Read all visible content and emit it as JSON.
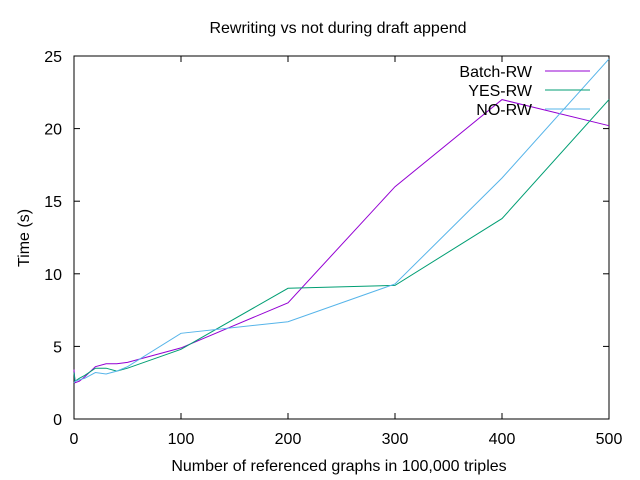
{
  "chart_data": {
    "type": "line",
    "title": "Rewriting vs not during draft append",
    "xlabel": "Number of referenced graphs in 100,000 triples",
    "ylabel": "Time (s)",
    "xlim": [
      0,
      500
    ],
    "ylim": [
      0,
      25
    ],
    "xticks": [
      "0",
      "100",
      "200",
      "300",
      "400",
      "500"
    ],
    "yticks": [
      "0",
      "5",
      "10",
      "15",
      "20",
      "25"
    ],
    "grid": false,
    "legend_position": "top-right",
    "series": [
      {
        "name": "Batch-RW",
        "color": "#9400d3",
        "x": [
          0,
          1,
          5,
          10,
          20,
          30,
          40,
          50,
          100,
          200,
          300,
          400,
          500
        ],
        "y": [
          3.4,
          2.5,
          2.6,
          2.9,
          3.6,
          3.8,
          3.8,
          3.9,
          4.9,
          8.0,
          16.0,
          22.0,
          20.2
        ]
      },
      {
        "name": "YES-RW",
        "color": "#009e73",
        "x": [
          0,
          1,
          5,
          10,
          20,
          30,
          40,
          50,
          100,
          200,
          300,
          400,
          500
        ],
        "y": [
          3.2,
          2.6,
          2.8,
          3.0,
          3.5,
          3.5,
          3.3,
          3.5,
          4.8,
          9.0,
          9.2,
          13.8,
          22.0
        ]
      },
      {
        "name": "NO-RW",
        "color": "#56b4e9",
        "x": [
          0,
          1,
          5,
          10,
          20,
          30,
          40,
          50,
          100,
          200,
          300,
          400,
          500
        ],
        "y": [
          2.5,
          2.6,
          2.7,
          2.8,
          3.2,
          3.1,
          3.3,
          3.6,
          5.9,
          6.7,
          9.3,
          16.6,
          24.8
        ]
      }
    ]
  }
}
